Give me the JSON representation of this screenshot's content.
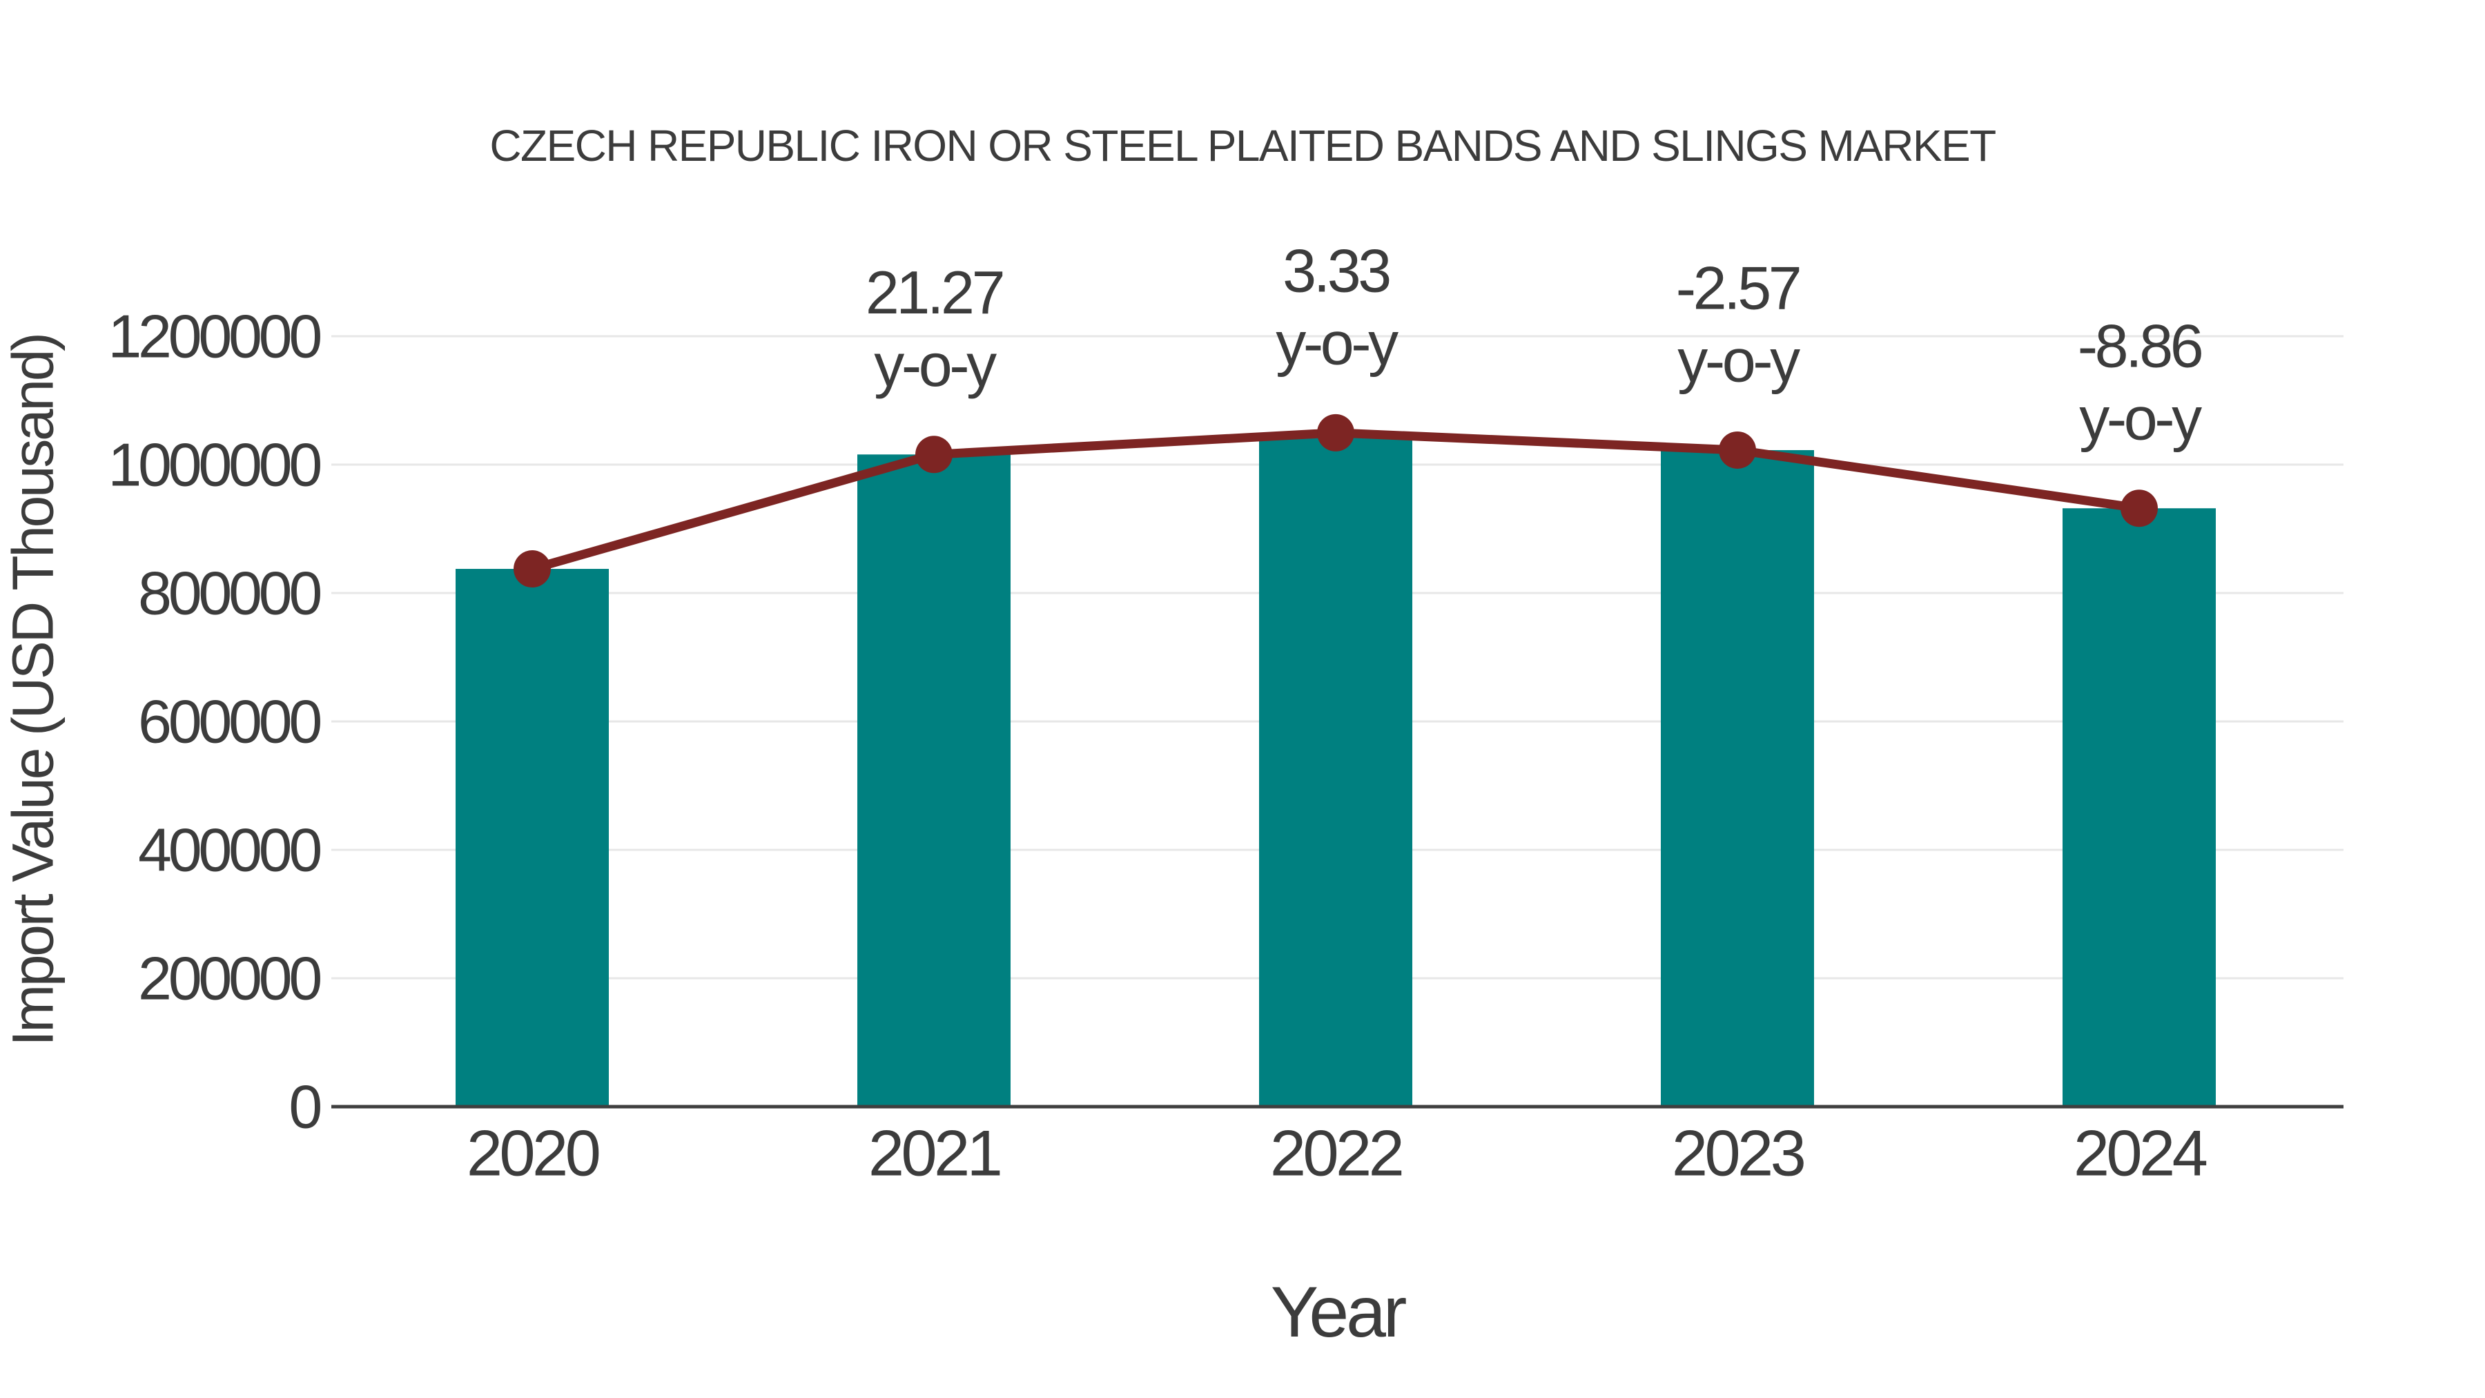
{
  "page": {
    "background": "#ffffff"
  },
  "chart_data": {
    "type": "bar",
    "title": "CZECH REPUBLIC IRON OR STEEL PLAITED BANDS AND SLINGS MARKET",
    "xlabel": "Year",
    "ylabel": "Import Value (USD Thousand)",
    "categories": [
      "2020",
      "2021",
      "2022",
      "2023",
      "2024"
    ],
    "series": [
      {
        "name": "Import Value",
        "type": "bar",
        "color": "#008080",
        "values": [
          837600,
          1015800,
          1049600,
          1022600,
          932000
        ]
      },
      {
        "name": "Import Value Trend",
        "type": "line",
        "color": "#7D2523",
        "marker_color": "#7D2523",
        "values": [
          837600,
          1015800,
          1049600,
          1022600,
          932000
        ]
      }
    ],
    "annotations": [
      {
        "category": "2021",
        "value": "21.27",
        "suffix": "y-o-y"
      },
      {
        "category": "2022",
        "value": "3.33",
        "suffix": "y-o-y"
      },
      {
        "category": "2023",
        "value": "-2.57",
        "suffix": "y-o-y"
      },
      {
        "category": "2024",
        "value": "-8.86",
        "suffix": "y-o-y"
      }
    ],
    "yticks": [
      0,
      200000,
      400000,
      600000,
      800000,
      1000000,
      1200000
    ],
    "ylim": [
      0,
      1272000
    ],
    "grid": true,
    "gridline_color": "#e7e7e7",
    "axis_line_color": "#3f3f3f",
    "text_color": "#3c3c3c",
    "legend": "none"
  }
}
